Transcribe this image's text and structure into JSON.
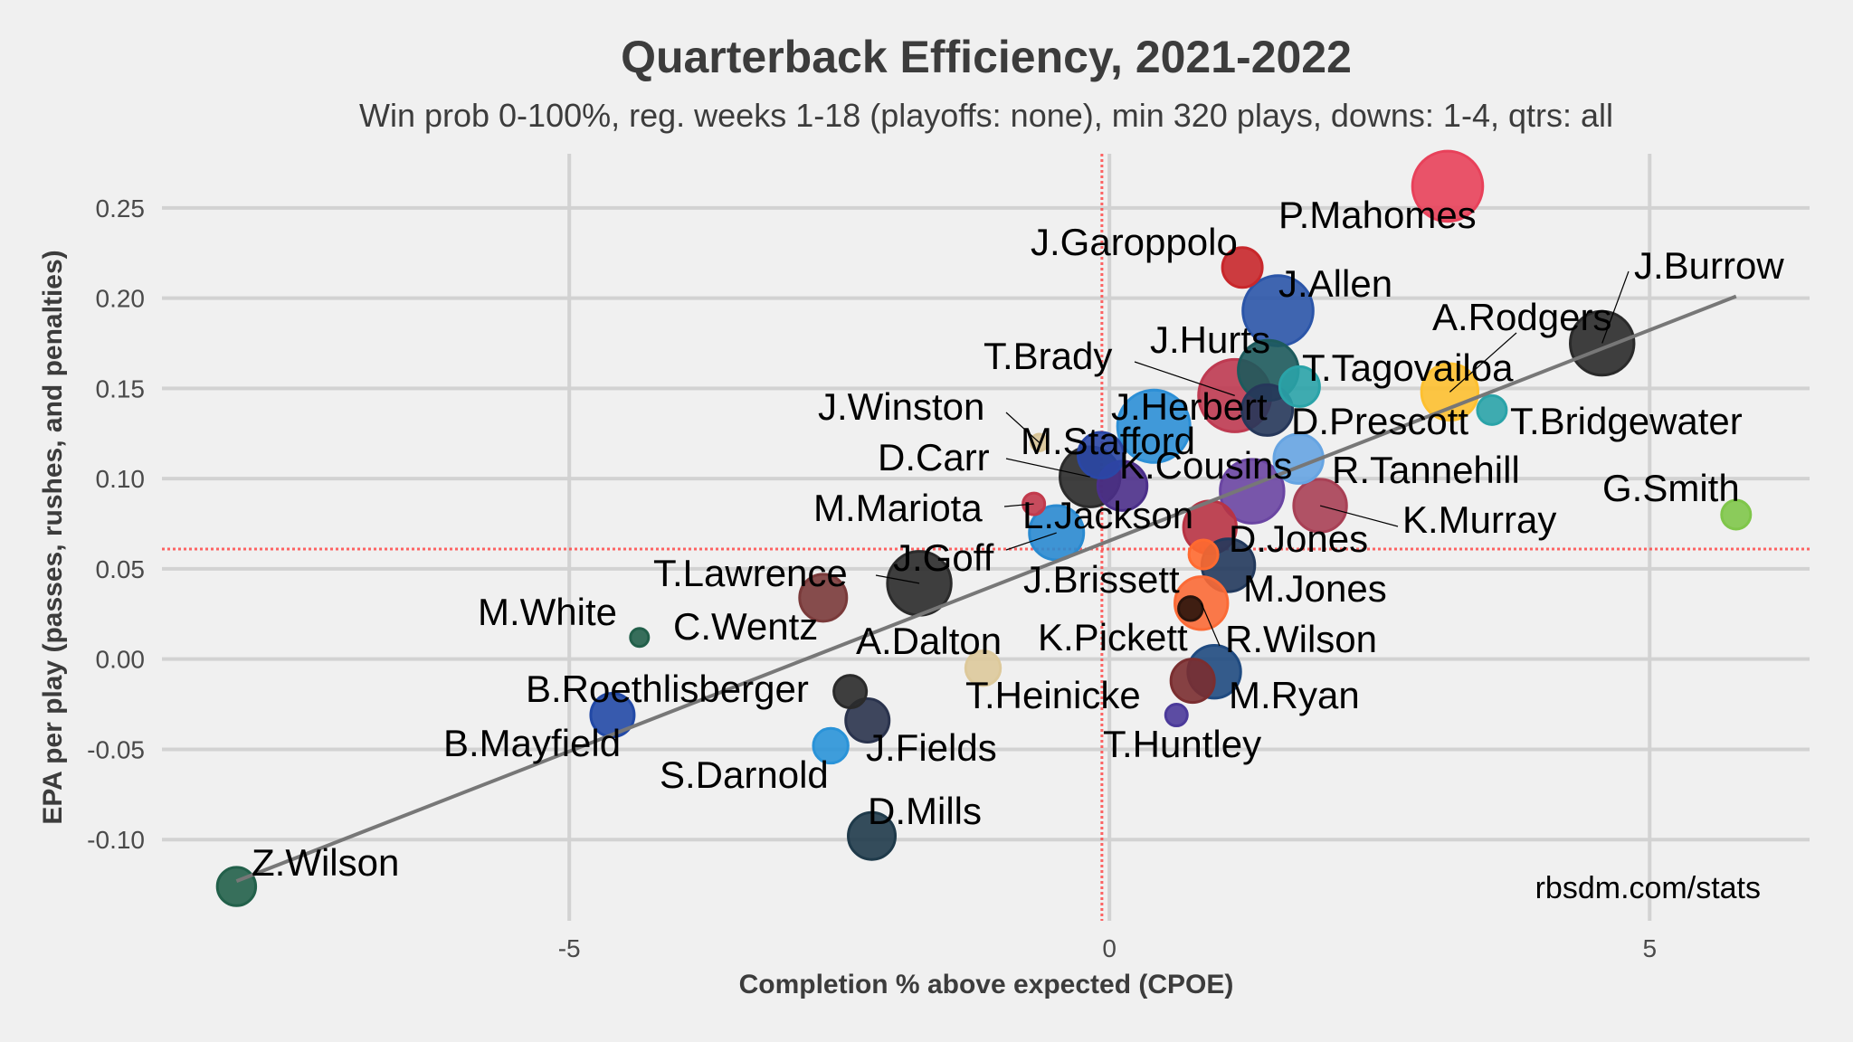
{
  "chart_data": {
    "type": "scatter",
    "title": "Quarterback Efficiency, 2021-2022",
    "subtitle": "Win prob 0-100%, reg. weeks 1-18 (playoffs: none), min 320 plays, downs: 1-4, qtrs: all",
    "xlabel": "Completion % above expected (CPOE)",
    "ylabel": "EPA per play (passes, rushes, and penalties)",
    "caption": "rbsdm.com/stats",
    "xlim": [
      -8.77,
      6.48
    ],
    "ylim": [
      -0.145,
      0.28
    ],
    "xticks": [
      {
        "value": -5,
        "label": "-5"
      },
      {
        "value": 0,
        "label": "0"
      },
      {
        "value": 5,
        "label": "5"
      }
    ],
    "yticks": [
      {
        "value": 0.25,
        "label": "0.25"
      },
      {
        "value": 0.2,
        "label": "0.20"
      },
      {
        "value": 0.15,
        "label": "0.15"
      },
      {
        "value": 0.1,
        "label": "0.10"
      },
      {
        "value": 0.05,
        "label": "0.05"
      },
      {
        "value": 0.0,
        "label": "0.00"
      },
      {
        "value": -0.05,
        "label": "-0.05"
      },
      {
        "value": -0.1,
        "label": "-0.10"
      }
    ],
    "grid": true,
    "reference_lines": {
      "mean_epa": 0.061,
      "mean_cpoe": -0.07,
      "color": "#ff4040",
      "style": "dotted"
    },
    "trend_line": {
      "x": [
        -8.08,
        5.8
      ],
      "y": [
        -0.123,
        0.201
      ],
      "color": "#777777"
    },
    "size_note": "bubble size relative (1 = largest)",
    "points": [
      {
        "name": "P.Mahomes",
        "x": 3.13,
        "y": 0.262,
        "size": 0.97,
        "color": "#e8415a"
      },
      {
        "name": "J.Garoppolo",
        "x": 1.23,
        "y": 0.217,
        "size": 0.55,
        "color": "#c8272b"
      },
      {
        "name": "J.Allen",
        "x": 1.56,
        "y": 0.193,
        "size": 0.97,
        "color": "#2b55a8"
      },
      {
        "name": "J.Burrow",
        "x": 4.56,
        "y": 0.175,
        "size": 0.88,
        "color": "#2a2a2a"
      },
      {
        "name": "A.Rodgers",
        "x": 3.15,
        "y": 0.148,
        "size": 0.78,
        "color": "#fdc030"
      },
      {
        "name": "T.Tagovailoa",
        "x": 1.76,
        "y": 0.151,
        "size": 0.55,
        "color": "#2aa3a8"
      },
      {
        "name": "T.Bridgewater",
        "x": 3.54,
        "y": 0.138,
        "size": 0.4,
        "color": "#2aa3a8"
      },
      {
        "name": "G.Smith",
        "x": 5.8,
        "y": 0.08,
        "size": 0.4,
        "color": "#7fc64a"
      },
      {
        "name": "J.Hurts",
        "x": 1.47,
        "y": 0.16,
        "size": 0.83,
        "color": "#1d5a5c"
      },
      {
        "name": "T.Brady",
        "x": 1.16,
        "y": 0.146,
        "size": 1.0,
        "color": "#be3a51"
      },
      {
        "name": "J.Herbert",
        "x": 0.41,
        "y": 0.129,
        "size": 1.0,
        "color": "#2c8fd6"
      },
      {
        "name": "D.Prescott",
        "x": 1.46,
        "y": 0.138,
        "size": 0.7,
        "color": "#26375a"
      },
      {
        "name": "J.Winston",
        "x": -0.65,
        "y": 0.12,
        "size": 0.23,
        "color": "#d8c497"
      },
      {
        "name": "M.Stafford",
        "x": -0.08,
        "y": 0.113,
        "size": 0.63,
        "color": "#2a47a6"
      },
      {
        "name": "K.Cousins",
        "x": 0.12,
        "y": 0.096,
        "size": 0.68,
        "color": "#4b2f8a"
      },
      {
        "name": "D.Carr",
        "x": -0.18,
        "y": 0.101,
        "size": 0.83,
        "color": "#2b2b2b"
      },
      {
        "name": "R.Tannehill",
        "x": 1.75,
        "y": 0.111,
        "size": 0.68,
        "color": "#66a4e2"
      },
      {
        "name": "M.Mariota",
        "x": -0.7,
        "y": 0.086,
        "size": 0.3,
        "color": "#c23a4c"
      },
      {
        "name": "L.Jackson",
        "x": 1.32,
        "y": 0.093,
        "size": 0.88,
        "color": "#6a45a2"
      },
      {
        "name": "K.Murray",
        "x": 1.95,
        "y": 0.085,
        "size": 0.73,
        "color": "#a84055"
      },
      {
        "name": "D.Jones",
        "x": 0.93,
        "y": 0.073,
        "size": 0.73,
        "color": "#b83344"
      },
      {
        "name": "J.Goff",
        "x": -0.49,
        "y": 0.07,
        "size": 0.75,
        "color": "#2a8ad0"
      },
      {
        "name": "T.Lawrence",
        "x": -1.76,
        "y": 0.042,
        "size": 0.88,
        "color": "#2a2a2a"
      },
      {
        "name": "J.Brissett",
        "x": 0.87,
        "y": 0.058,
        "size": 0.4,
        "color": "#ff6a30"
      },
      {
        "name": "M.Jones",
        "x": 1.1,
        "y": 0.052,
        "size": 0.73,
        "color": "#22395c"
      },
      {
        "name": "M.White",
        "x": -4.35,
        "y": 0.012,
        "size": 0.25,
        "color": "#225f4a"
      },
      {
        "name": "C.Wentz",
        "x": -2.65,
        "y": 0.034,
        "size": 0.65,
        "color": "#7a3a3a"
      },
      {
        "name": "A.Dalton",
        "x": -1.17,
        "y": -0.005,
        "size": 0.48,
        "color": "#ddc99b"
      },
      {
        "name": "K.Pickett",
        "x": 0.75,
        "y": 0.028,
        "size": 0.33,
        "color": "#2a140c"
      },
      {
        "name": "R.Wilson",
        "x": 0.85,
        "y": 0.031,
        "size": 0.73,
        "color": "#fb6a36"
      },
      {
        "name": "B.Roethlisberger",
        "x": -2.4,
        "y": -0.018,
        "size": 0.45,
        "color": "#2a2a2a"
      },
      {
        "name": "T.Heinicke",
        "x": 0.77,
        "y": -0.012,
        "size": 0.6,
        "color": "#7a2e30"
      },
      {
        "name": "M.Ryan",
        "x": 0.97,
        "y": -0.007,
        "size": 0.73,
        "color": "#1f4a80"
      },
      {
        "name": "B.Mayfield",
        "x": -4.6,
        "y": -0.031,
        "size": 0.6,
        "color": "#2249a6"
      },
      {
        "name": "J.Fields",
        "x": -2.24,
        "y": -0.034,
        "size": 0.6,
        "color": "#2a334d"
      },
      {
        "name": "T.Huntley",
        "x": 0.62,
        "y": -0.031,
        "size": 0.3,
        "color": "#4b3a9a"
      },
      {
        "name": "S.Darnold",
        "x": -2.58,
        "y": -0.048,
        "size": 0.48,
        "color": "#2a93d8"
      },
      {
        "name": "D.Mills",
        "x": -2.2,
        "y": -0.098,
        "size": 0.65,
        "color": "#1f3a4a"
      },
      {
        "name": "Z.Wilson",
        "x": -8.08,
        "y": -0.126,
        "size": 0.53,
        "color": "#22604a"
      }
    ]
  }
}
